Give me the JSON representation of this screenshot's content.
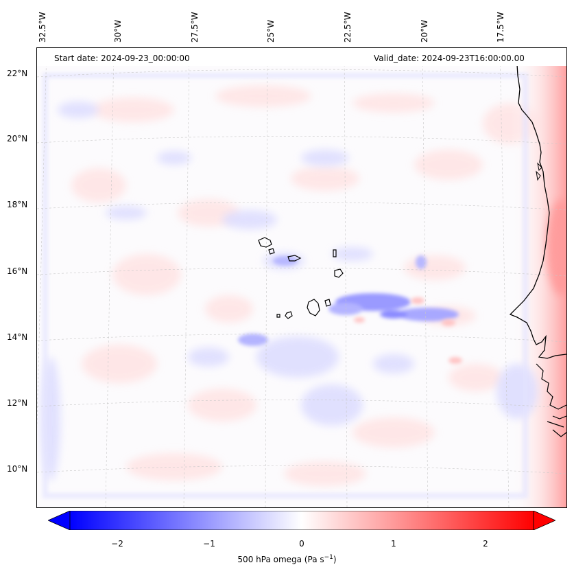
{
  "map": {
    "start_date": "Start date: 2024-09-23_00:00:00",
    "valid_date": "Valid_date: 2024-09-23T16:00:00.00",
    "lon_labels": [
      "32.5°W",
      "30°W",
      "27.5°W",
      "25°W",
      "22.5°W",
      "20°W",
      "17.5°W"
    ],
    "lat_labels": [
      "22°N",
      "20°N",
      "18°N",
      "16°N",
      "14°N",
      "12°N",
      "10°N"
    ],
    "field": "500 hPa omega",
    "colormap": "bwr",
    "colors": {
      "negative": "#0000ff",
      "zero": "#ffffff",
      "positive": "#ff0000",
      "coastline": "#000000"
    }
  },
  "colorbar": {
    "ticks": [
      "−2",
      "−1",
      "0",
      "1",
      "2"
    ],
    "label_main": "500 hPa omega (Pa s",
    "label_exp": "−1",
    "label_close": ")",
    "range": [
      -2.7,
      2.7
    ]
  }
}
